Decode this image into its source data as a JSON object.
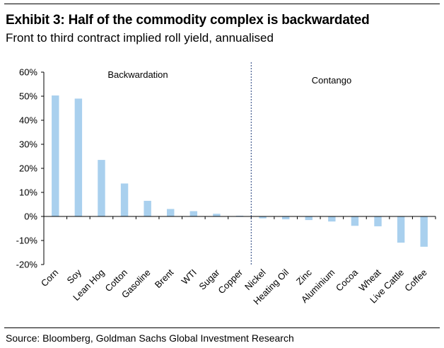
{
  "header": {
    "title": "Exhibit 3: Half of the commodity complex is backwardated",
    "subtitle": "Front to third contract implied roll yield, annualised"
  },
  "footer": {
    "source": "Source: Bloomberg, Goldman Sachs Global Investment Research"
  },
  "colors": {
    "bar": "#a9d0ee",
    "axis": "#000000",
    "divider": "#1f3d7a"
  },
  "chart_data": {
    "type": "bar",
    "categories": [
      "Corn",
      "Soy",
      "Lean Hog",
      "Cotton",
      "Gasoline",
      "Brent",
      "WTI",
      "Sugar",
      "Copper",
      "Nickel",
      "Heating Oil",
      "Zinc",
      "Aluminium",
      "Cocoa",
      "Wheat",
      "Live Cattle",
      "Coffee"
    ],
    "values": [
      50.3,
      49.0,
      23.5,
      13.7,
      6.5,
      3.1,
      2.2,
      1.1,
      0.3,
      -0.8,
      -1.2,
      -1.5,
      -2.1,
      -3.9,
      -4.1,
      -10.9,
      -12.6
    ],
    "ylim": [
      -20,
      60
    ],
    "yticks": [
      -20,
      -10,
      0,
      10,
      20,
      30,
      40,
      50,
      60
    ],
    "ytick_labels": [
      "-20%",
      "-10%",
      "0%",
      "10%",
      "20%",
      "30%",
      "40%",
      "50%",
      "60%"
    ],
    "annotations": [
      {
        "text": "Backwardation",
        "side": "left"
      },
      {
        "text": "Contango",
        "side": "right"
      }
    ],
    "divider_between": [
      "Copper",
      "Nickel"
    ],
    "grid": false,
    "legend": "none",
    "xlabel": "",
    "ylabel": ""
  }
}
